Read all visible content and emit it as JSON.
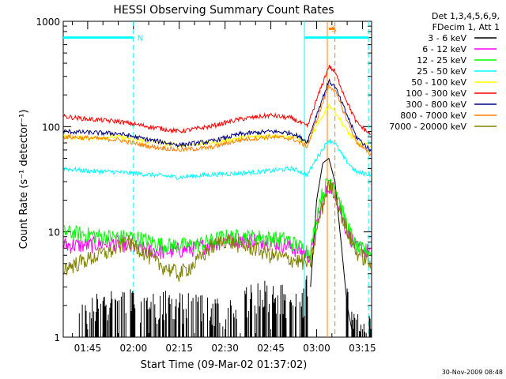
{
  "chart_data": {
    "type": "line",
    "title": "HESSI Observing Summary Count Rates",
    "xlabel": "Start Time (09-Mar-02 01:37:02)",
    "ylabel": "Count Rate (s⁻¹ detector⁻¹)",
    "yscale": "log",
    "ylim": [
      1,
      1000
    ],
    "xlim_minutes": [
      97,
      198
    ],
    "x_ticks": [
      {
        "minute": 105,
        "label": "01:45"
      },
      {
        "minute": 120,
        "label": "02:00"
      },
      {
        "minute": 135,
        "label": "02:15"
      },
      {
        "minute": 150,
        "label": "02:30"
      },
      {
        "minute": 165,
        "label": "02:45"
      },
      {
        "minute": 180,
        "label": "03:00"
      },
      {
        "minute": 195,
        "label": "03:15"
      }
    ],
    "y_ticks": [
      {
        "value": 1,
        "label": "1"
      },
      {
        "value": 10,
        "label": "10"
      },
      {
        "value": 100,
        "label": "100"
      },
      {
        "value": 1000,
        "label": "1000"
      }
    ],
    "legend_header": [
      "Det 1,3,4,5,6,9,",
      "FDecim 1, Att 1"
    ],
    "legend_position": "right",
    "series": [
      {
        "name": "3 - 6 keV",
        "color": "#000000",
        "points": [
          [
            97,
            1
          ],
          [
            112,
            1.8
          ],
          [
            135,
            1.6
          ],
          [
            150,
            1.5
          ],
          [
            163,
            2.2
          ],
          [
            175,
            1.6
          ],
          [
            178,
            3
          ],
          [
            180,
            20
          ],
          [
            182,
            45
          ],
          [
            184,
            50
          ],
          [
            186,
            30
          ],
          [
            188,
            8
          ],
          [
            190,
            2
          ],
          [
            192,
            1
          ],
          [
            198,
            1
          ]
        ]
      },
      {
        "name": "6 - 12 keV",
        "color": "#ff00ff",
        "points": [
          [
            97,
            7.5
          ],
          [
            105,
            7.5
          ],
          [
            115,
            8
          ],
          [
            122,
            7
          ],
          [
            130,
            6.5
          ],
          [
            140,
            7
          ],
          [
            150,
            8.5
          ],
          [
            160,
            8.5
          ],
          [
            170,
            7.5
          ],
          [
            178,
            6
          ],
          [
            181,
            15
          ],
          [
            184,
            28
          ],
          [
            186,
            25
          ],
          [
            189,
            12
          ],
          [
            193,
            7
          ],
          [
            198,
            6.5
          ]
        ]
      },
      {
        "name": "12 - 25 keV",
        "color": "#00ff00",
        "points": [
          [
            97,
            10
          ],
          [
            105,
            9.5
          ],
          [
            112,
            9
          ],
          [
            120,
            9
          ],
          [
            130,
            7.5
          ],
          [
            140,
            7.5
          ],
          [
            150,
            9
          ],
          [
            160,
            9
          ],
          [
            170,
            8.5
          ],
          [
            178,
            6.5
          ],
          [
            181,
            20
          ],
          [
            184,
            32
          ],
          [
            186,
            28
          ],
          [
            189,
            14
          ],
          [
            193,
            7
          ],
          [
            198,
            6.5
          ]
        ]
      },
      {
        "name": "25 - 50 keV",
        "color": "#00ffff",
        "points": [
          [
            97,
            40
          ],
          [
            105,
            38
          ],
          [
            115,
            37
          ],
          [
            125,
            35
          ],
          [
            135,
            33
          ],
          [
            145,
            35
          ],
          [
            155,
            36
          ],
          [
            165,
            38
          ],
          [
            172,
            40
          ],
          [
            177,
            35
          ],
          [
            180,
            50
          ],
          [
            184,
            75
          ],
          [
            186,
            70
          ],
          [
            189,
            50
          ],
          [
            193,
            37
          ],
          [
            198,
            35
          ]
        ]
      },
      {
        "name": "50 - 100 keV",
        "color": "#ffff00",
        "points": [
          [
            97,
            80
          ],
          [
            105,
            78
          ],
          [
            115,
            80
          ],
          [
            125,
            72
          ],
          [
            135,
            66
          ],
          [
            145,
            70
          ],
          [
            155,
            78
          ],
          [
            165,
            82
          ],
          [
            172,
            80
          ],
          [
            177,
            70
          ],
          [
            180,
            100
          ],
          [
            184,
            160
          ],
          [
            186,
            140
          ],
          [
            189,
            100
          ],
          [
            193,
            70
          ],
          [
            198,
            65
          ]
        ]
      },
      {
        "name": "100 - 300 keV",
        "color": "#ff0000",
        "points": [
          [
            97,
            125
          ],
          [
            105,
            118
          ],
          [
            115,
            112
          ],
          [
            125,
            100
          ],
          [
            135,
            90
          ],
          [
            145,
            100
          ],
          [
            155,
            118
          ],
          [
            165,
            128
          ],
          [
            172,
            120
          ],
          [
            177,
            100
          ],
          [
            180,
            180
          ],
          [
            184,
            375
          ],
          [
            186,
            330
          ],
          [
            189,
            200
          ],
          [
            193,
            110
          ],
          [
            198,
            82
          ]
        ]
      },
      {
        "name": "300 - 800 keV",
        "color": "#000080",
        "points": [
          [
            97,
            90
          ],
          [
            105,
            88
          ],
          [
            115,
            86
          ],
          [
            125,
            75
          ],
          [
            135,
            67
          ],
          [
            145,
            72
          ],
          [
            155,
            85
          ],
          [
            165,
            90
          ],
          [
            172,
            87
          ],
          [
            177,
            72
          ],
          [
            180,
            130
          ],
          [
            184,
            270
          ],
          [
            186,
            240
          ],
          [
            189,
            150
          ],
          [
            193,
            80
          ],
          [
            198,
            58
          ]
        ]
      },
      {
        "name": "800 - 7000 keV",
        "color": "#ff8000",
        "points": [
          [
            97,
            80
          ],
          [
            105,
            78
          ],
          [
            115,
            75
          ],
          [
            125,
            65
          ],
          [
            135,
            60
          ],
          [
            145,
            63
          ],
          [
            155,
            75
          ],
          [
            165,
            80
          ],
          [
            172,
            77
          ],
          [
            177,
            65
          ],
          [
            180,
            115
          ],
          [
            184,
            245
          ],
          [
            186,
            220
          ],
          [
            189,
            135
          ],
          [
            193,
            72
          ],
          [
            198,
            53
          ]
        ]
      },
      {
        "name": "7000 - 20000 keV",
        "color": "#808000",
        "points": [
          [
            97,
            4.5
          ],
          [
            105,
            5.5
          ],
          [
            112,
            6.5
          ],
          [
            118,
            8
          ],
          [
            122,
            7
          ],
          [
            128,
            5
          ],
          [
            135,
            4
          ],
          [
            140,
            5
          ],
          [
            145,
            7
          ],
          [
            150,
            8.5
          ],
          [
            155,
            7.5
          ],
          [
            160,
            7
          ],
          [
            165,
            6
          ],
          [
            172,
            5.5
          ],
          [
            178,
            5
          ],
          [
            181,
            14
          ],
          [
            184,
            28
          ],
          [
            186,
            24
          ],
          [
            189,
            12
          ],
          [
            193,
            6.5
          ],
          [
            198,
            5
          ]
        ]
      }
    ],
    "annotations": [
      {
        "label": "N",
        "color": "#00ffff",
        "bar_minutes": [
          97,
          120
        ],
        "bar_y": 700,
        "line_minutes": [
          120
        ]
      },
      {
        "label": "S",
        "color": "#ff8000",
        "bar_minutes": [
          184,
          186
        ],
        "bar_y": 850,
        "line_minutes": [
          183.5,
          186
        ]
      },
      {
        "label": "",
        "color": "#00ffff",
        "bar_minutes": [
          176,
          197
        ],
        "bar_y": 700,
        "line_minutes": [
          176,
          197
        ]
      }
    ]
  },
  "footer_timestamp": "30-Nov-2009 08:48"
}
